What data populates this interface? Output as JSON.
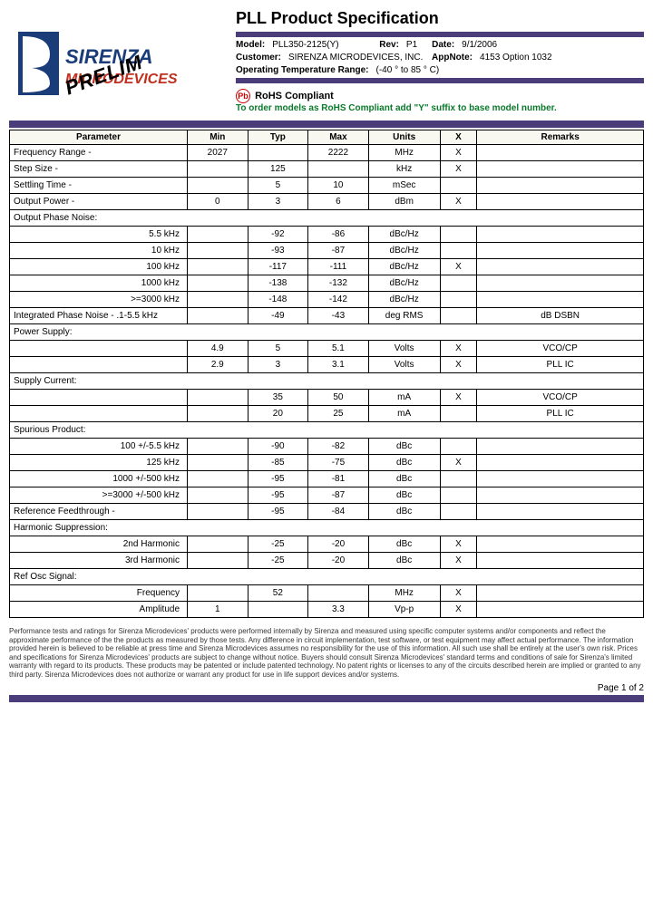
{
  "header": {
    "title": "PLL Product Specification",
    "logo_stamp": "PRELIM",
    "model_label": "Model:",
    "model": "PLL350-2125(Y)",
    "rev_label": "Rev:",
    "rev": "P1",
    "date_label": "Date:",
    "date": "9/1/2006",
    "customer_label": "Customer:",
    "customer": "SIRENZA MICRODEVICES, INC.",
    "appnote_label": "AppNote:",
    "appnote": "4153 Option 1032",
    "temp_label": "Operating Temperature Range:",
    "temp": "(-40 ° to 85 ° C)",
    "pb": "Pb",
    "rohs": "RoHS Compliant",
    "rohs_note": "To order models as RoHS Compliant add \"Y\" suffix to base model number."
  },
  "columns": {
    "param": "Parameter",
    "min": "Min",
    "typ": "Typ",
    "max": "Max",
    "units": "Units",
    "x": "X",
    "remarks": "Remarks"
  },
  "rows": [
    {
      "p": "Frequency Range -",
      "min": "2027",
      "typ": "",
      "max": "2222",
      "u": "MHz",
      "x": "X",
      "r": "",
      "cls": "param"
    },
    {
      "p": "Step Size -",
      "min": "",
      "typ": "125",
      "max": "",
      "u": "kHz",
      "x": "X",
      "r": "",
      "cls": "param"
    },
    {
      "p": "Settling Time -",
      "min": "",
      "typ": "5",
      "max": "10",
      "u": "mSec",
      "x": "",
      "r": "",
      "cls": "param"
    },
    {
      "p": "Output Power -",
      "min": "0",
      "typ": "3",
      "max": "6",
      "u": "dBm",
      "x": "X",
      "r": "",
      "cls": "param"
    },
    {
      "p": "Output Phase Noise:",
      "min": "",
      "typ": "",
      "max": "",
      "u": "",
      "x": "",
      "r": "",
      "cls": "param",
      "section": true
    },
    {
      "p": "5.5 kHz",
      "min": "",
      "typ": "-92",
      "max": "-86",
      "u": "dBc/Hz",
      "x": "",
      "r": "",
      "cls": "param-indent"
    },
    {
      "p": "10 kHz",
      "min": "",
      "typ": "-93",
      "max": "-87",
      "u": "dBc/Hz",
      "x": "",
      "r": "",
      "cls": "param-indent"
    },
    {
      "p": "100 kHz",
      "min": "",
      "typ": "-117",
      "max": "-111",
      "u": "dBc/Hz",
      "x": "X",
      "r": "",
      "cls": "param-indent"
    },
    {
      "p": "1000 kHz",
      "min": "",
      "typ": "-138",
      "max": "-132",
      "u": "dBc/Hz",
      "x": "",
      "r": "",
      "cls": "param-indent"
    },
    {
      "p": ">=3000 kHz",
      "min": "",
      "typ": "-148",
      "max": "-142",
      "u": "dBc/Hz",
      "x": "",
      "r": "",
      "cls": "param-indent"
    },
    {
      "p": "Integrated Phase Noise - .1-5.5 kHz",
      "min": "",
      "typ": "-49",
      "max": "-43",
      "u": "deg RMS",
      "x": "",
      "r": "dB DSBN",
      "cls": "param"
    },
    {
      "p": "Power Supply:",
      "min": "",
      "typ": "",
      "max": "",
      "u": "",
      "x": "",
      "r": "",
      "cls": "param",
      "section": true
    },
    {
      "p": "",
      "min": "4.9",
      "typ": "5",
      "max": "5.1",
      "u": "Volts",
      "x": "X",
      "r": "VCO/CP",
      "cls": "param-indent"
    },
    {
      "p": "",
      "min": "2.9",
      "typ": "3",
      "max": "3.1",
      "u": "Volts",
      "x": "X",
      "r": "PLL IC",
      "cls": "param-indent"
    },
    {
      "p": "Supply Current:",
      "min": "",
      "typ": "",
      "max": "",
      "u": "",
      "x": "",
      "r": "",
      "cls": "param",
      "section": true
    },
    {
      "p": "",
      "min": "",
      "typ": "35",
      "max": "50",
      "u": "mA",
      "x": "X",
      "r": "VCO/CP",
      "cls": "param-indent"
    },
    {
      "p": "",
      "min": "",
      "typ": "20",
      "max": "25",
      "u": "mA",
      "x": "",
      "r": "PLL IC",
      "cls": "param-indent"
    },
    {
      "p": "Spurious Product:",
      "min": "",
      "typ": "",
      "max": "",
      "u": "",
      "x": "",
      "r": "",
      "cls": "param",
      "section": true
    },
    {
      "p": "100 +/-5.5 kHz",
      "min": "",
      "typ": "-90",
      "max": "-82",
      "u": "dBc",
      "x": "",
      "r": "",
      "cls": "param-indent"
    },
    {
      "p": "125 kHz",
      "min": "",
      "typ": "-85",
      "max": "-75",
      "u": "dBc",
      "x": "X",
      "r": "",
      "cls": "param-indent"
    },
    {
      "p": "1000 +/-500 kHz",
      "min": "",
      "typ": "-95",
      "max": "-81",
      "u": "dBc",
      "x": "",
      "r": "",
      "cls": "param-indent"
    },
    {
      "p": ">=3000 +/-500 kHz",
      "min": "",
      "typ": "-95",
      "max": "-87",
      "u": "dBc",
      "x": "",
      "r": "",
      "cls": "param-indent"
    },
    {
      "p": "Reference Feedthrough -",
      "min": "",
      "typ": "-95",
      "max": "-84",
      "u": "dBc",
      "x": "",
      "r": "",
      "cls": "param"
    },
    {
      "p": "Harmonic Suppression:",
      "min": "",
      "typ": "",
      "max": "",
      "u": "",
      "x": "",
      "r": "",
      "cls": "param",
      "section": true
    },
    {
      "p": "2nd Harmonic",
      "min": "",
      "typ": "-25",
      "max": "-20",
      "u": "dBc",
      "x": "X",
      "r": "",
      "cls": "param-indent"
    },
    {
      "p": "3rd Harmonic",
      "min": "",
      "typ": "-25",
      "max": "-20",
      "u": "dBc",
      "x": "X",
      "r": "",
      "cls": "param-indent"
    },
    {
      "p": "Ref Osc Signal:",
      "min": "",
      "typ": "",
      "max": "",
      "u": "",
      "x": "",
      "r": "",
      "cls": "param",
      "section": true
    },
    {
      "p": "Frequency",
      "min": "",
      "typ": "52",
      "max": "",
      "u": "MHz",
      "x": "X",
      "r": "",
      "cls": "param-indent"
    },
    {
      "p": "Amplitude",
      "min": "1",
      "typ": "",
      "max": "3.3",
      "u": "Vp-p",
      "x": "X",
      "r": "",
      "cls": "param-indent"
    }
  ],
  "footer": {
    "disclaimer": "Performance tests and ratings for Sirenza Microdevices' products were performed internally by Sirenza and measured using specific computer systems and/or components and reflect the approximate performance of the the products as measured by those tests. Any difference in circuit implementation, test software, or test equipment may affect actual performance. The information provided herein is believed to be reliable at press time and Sirenza Microdevices assumes no responsibility for the use of this information. All such use shall be entirely at the user's own risk. Prices and specifications for Sirenza Microdevices' products are subject to change without notice. Buyers should consult Sirenza Microdevices' standard terms and conditions of sale for Sirenza's limited warranty with regard to its products. These products may be patented or include patented technology. No patent rights or licenses to any of the circuits described herein are implied or granted to any third party. Sirenza Microdevices does not authorize or warrant any product for use in life support devices and/or systems.",
    "page": "Page 1 of 2"
  },
  "colors": {
    "purple": "#4a3d7a",
    "logo_blue": "#1a3d7a",
    "logo_red": "#c03020",
    "green": "#0a7a2a"
  }
}
